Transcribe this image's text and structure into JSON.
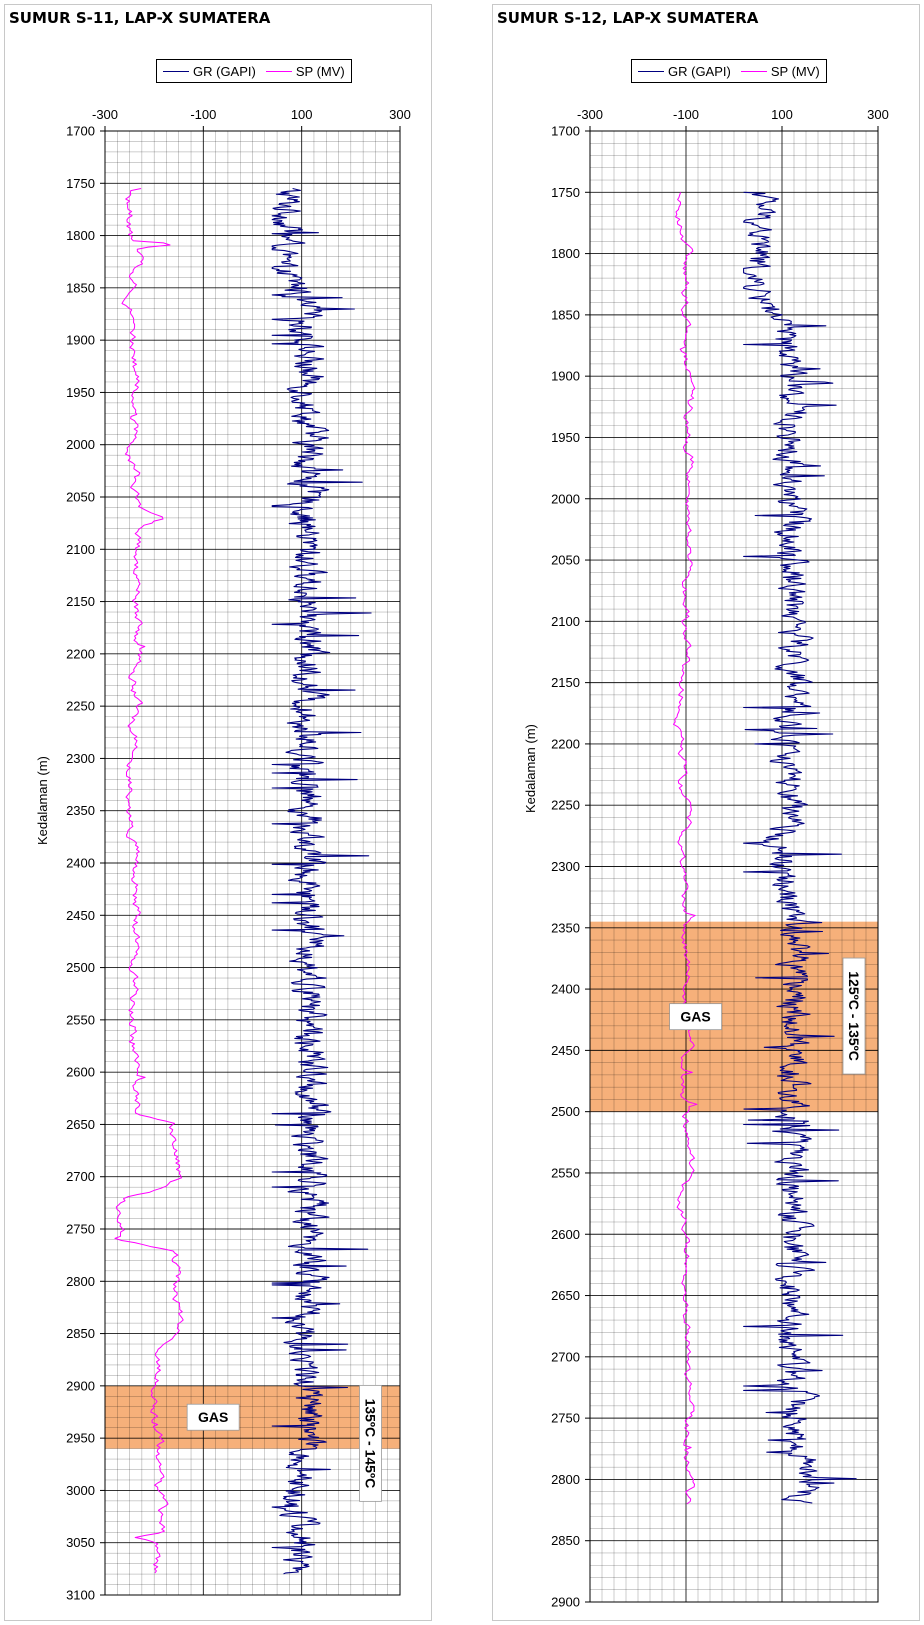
{
  "chart_data": [
    {
      "type": "line",
      "title": "SUMUR S-11, LAP-X SUMATERA",
      "ylabel": "Kedalaman (m)",
      "xlim": [
        -300,
        300
      ],
      "ylim": [
        1700,
        3100
      ],
      "y_inverted": true,
      "x_ticks": [
        -300,
        -100,
        100,
        300
      ],
      "y_ticks": [
        1700,
        1750,
        1800,
        1850,
        1900,
        1950,
        2000,
        2050,
        2100,
        2150,
        2200,
        2250,
        2300,
        2350,
        2400,
        2450,
        2500,
        2550,
        2600,
        2650,
        2700,
        2750,
        2800,
        2850,
        2900,
        2950,
        3000,
        3050,
        3100
      ],
      "series": [
        {
          "name": "GR (GAPI)",
          "color": "#000080",
          "depth_range": [
            1755,
            3080
          ],
          "baseline": [
            [
              1755,
              70
            ],
            [
              1800,
              72
            ],
            [
              1830,
              45
            ],
            [
              1850,
              95
            ],
            [
              1900,
              110
            ],
            [
              2000,
              115
            ],
            [
              2100,
              110
            ],
            [
              2200,
              115
            ],
            [
              2300,
              110
            ],
            [
              2400,
              115
            ],
            [
              2500,
              118
            ],
            [
              2600,
              115
            ],
            [
              2700,
              120
            ],
            [
              2800,
              118
            ],
            [
              2850,
              100
            ],
            [
              2900,
              110
            ],
            [
              2950,
              110
            ],
            [
              3000,
              90
            ],
            [
              3050,
              100
            ],
            [
              3080,
              80
            ]
          ],
          "range": [
            40,
            275
          ]
        },
        {
          "name": "SP (MV)",
          "color": "#ff00ff",
          "depth_range": [
            1755,
            3080
          ],
          "baseline": [
            [
              1755,
              -250
            ],
            [
              1805,
              -250
            ],
            [
              1808,
              -150
            ],
            [
              1812,
              -240
            ],
            [
              2060,
              -240
            ],
            [
              2070,
              -200
            ],
            [
              2080,
              -240
            ],
            [
              2640,
              -240
            ],
            [
              2648,
              -160
            ],
            [
              2700,
              -150
            ],
            [
              2715,
              -215
            ],
            [
              2720,
              -270
            ],
            [
              2760,
              -270
            ],
            [
              2770,
              -160
            ],
            [
              2850,
              -150
            ],
            [
              2870,
              -190
            ],
            [
              2900,
              -195
            ],
            [
              3000,
              -190
            ],
            [
              3040,
              -190
            ],
            [
              3045,
              -245
            ],
            [
              3050,
              -195
            ],
            [
              3080,
              -195
            ]
          ],
          "range": [
            -280,
            -130
          ]
        }
      ],
      "annotations": [
        {
          "type": "band",
          "from": 2900,
          "to": 2960,
          "label": "GAS",
          "color": "#f5a263"
        },
        {
          "type": "text",
          "text": "135ºC - 145ºC",
          "rotation": 90
        }
      ]
    },
    {
      "type": "line",
      "title": "SUMUR S-12, LAP-X SUMATERA",
      "ylabel": "Kedalaman (m)",
      "xlim": [
        -300,
        300
      ],
      "ylim": [
        1700,
        2900
      ],
      "y_inverted": true,
      "x_ticks": [
        -300,
        -100,
        100,
        300
      ],
      "y_ticks": [
        1700,
        1750,
        1800,
        1850,
        1900,
        1950,
        2000,
        2050,
        2100,
        2150,
        2200,
        2250,
        2300,
        2350,
        2400,
        2450,
        2500,
        2550,
        2600,
        2650,
        2700,
        2750,
        2800,
        2850,
        2900
      ],
      "series": [
        {
          "name": "GR (GAPI)",
          "color": "#000080",
          "depth_range": [
            1750,
            2820
          ],
          "baseline": [
            [
              1750,
              60
            ],
            [
              1800,
              50
            ],
            [
              1820,
              30
            ],
            [
              1850,
              90
            ],
            [
              1900,
              120
            ],
            [
              2000,
              120
            ],
            [
              2100,
              130
            ],
            [
              2200,
              110
            ],
            [
              2250,
              110
            ],
            [
              2300,
              90
            ],
            [
              2340,
              120
            ],
            [
              2400,
              130
            ],
            [
              2500,
              120
            ],
            [
              2600,
              120
            ],
            [
              2700,
              115
            ],
            [
              2800,
              150
            ],
            [
              2820,
              135
            ]
          ],
          "range": [
            20,
            300
          ]
        },
        {
          "name": "SP (MV)",
          "color": "#ff00ff",
          "depth_range": [
            1750,
            2820
          ],
          "baseline": [
            [
              1750,
              -115
            ],
            [
              1800,
              -100
            ],
            [
              1900,
              -95
            ],
            [
              2000,
              -90
            ],
            [
              2100,
              -105
            ],
            [
              2150,
              -105
            ],
            [
              2200,
              -110
            ],
            [
              2300,
              -100
            ],
            [
              2400,
              -95
            ],
            [
              2500,
              -100
            ],
            [
              2600,
              -100
            ],
            [
              2700,
              -95
            ],
            [
              2800,
              -100
            ],
            [
              2820,
              -100
            ]
          ],
          "range": [
            -140,
            -50
          ]
        }
      ],
      "annotations": [
        {
          "type": "band",
          "from": 2345,
          "to": 2500,
          "label": "GAS",
          "color": "#f5a263"
        },
        {
          "type": "text",
          "text": "125ºC - 135ºC",
          "rotation": 90
        }
      ]
    }
  ],
  "legend": {
    "gr": "GR (GAPI)",
    "sp": "SP (MV)",
    "gr_color": "#000080",
    "sp_color": "#ff00ff"
  },
  "colors": {
    "gas_band": "#f5a263",
    "grid": "#000000"
  }
}
